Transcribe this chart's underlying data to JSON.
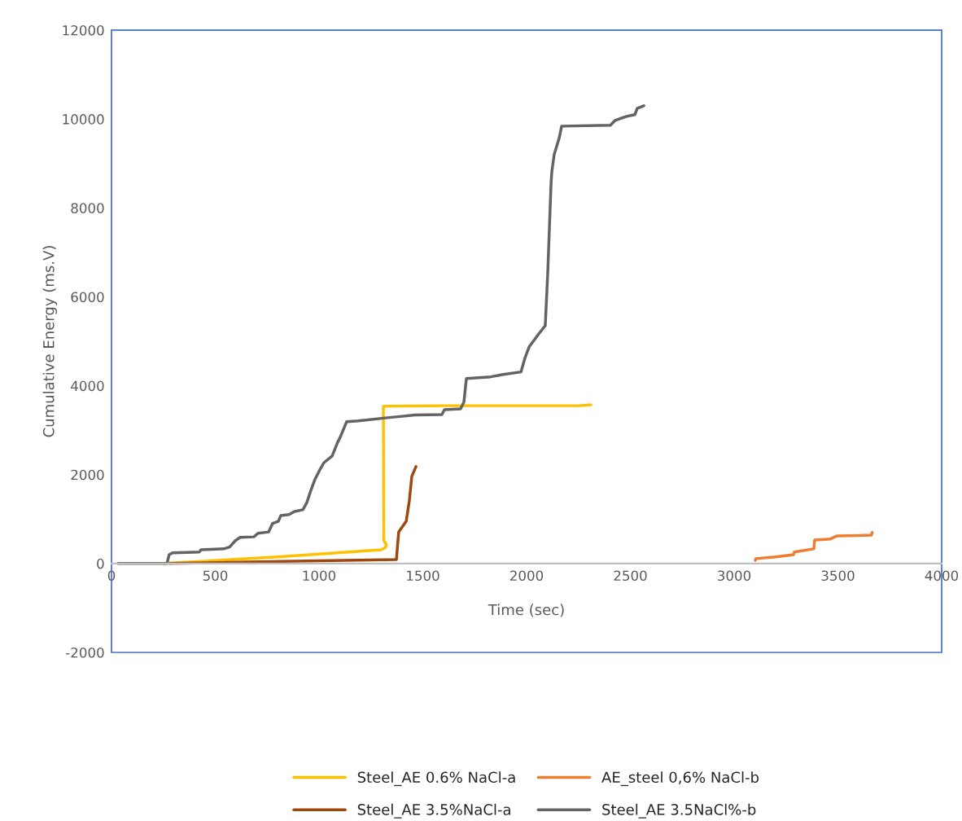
{
  "chart_data": {
    "type": "line",
    "xlabel": "Time (sec)",
    "ylabel": "Cumulative Energy (ms.V)",
    "xlim": [
      0,
      4000
    ],
    "xticks": [
      0,
      500,
      1000,
      1500,
      2000,
      2500,
      3000,
      3500,
      4000
    ],
    "ylim": [
      -2000,
      12000
    ],
    "yticks": [
      -2000,
      0,
      2000,
      4000,
      6000,
      8000,
      10000,
      12000
    ],
    "grid": false,
    "legend": "bottom",
    "marker": "none",
    "line_style": "solid",
    "series": [
      {
        "name": "Steel_AE 0.6% NaCl-a",
        "color": "#ffc000",
        "x": [
          250,
          800,
          1300,
          1320,
          1325,
          1312,
          1310,
          1600,
          2000,
          2250,
          2310
        ],
        "values": [
          0,
          150,
          310,
          360,
          420,
          520,
          3540,
          3550,
          3550,
          3550,
          3570
        ]
      },
      {
        "name": "AE_steel 0,6% NaCl-b",
        "color": "#ed7d31",
        "x": [
          3102,
          3104,
          3200,
          3286,
          3290,
          3384,
          3388,
          3463,
          3494,
          3600,
          3662,
          3665
        ],
        "values": [
          70,
          110,
          150,
          200,
          260,
          330,
          530,
          550,
          620,
          630,
          640,
          700
        ]
      },
      {
        "name": "Steel_AE 3.5%NaCl-a",
        "color": "#9e480e",
        "x": [
          280,
          600,
          1000,
          1373,
          1378,
          1384,
          1420,
          1435,
          1447,
          1467
        ],
        "values": [
          0,
          30,
          60,
          90,
          400,
          710,
          950,
          1410,
          1960,
          2180
        ]
      },
      {
        "name": "Steel_AE 3.5NaCl%-b",
        "color": "#636363",
        "x": [
          31,
          267,
          278,
          294,
          424,
          431,
          541,
          569,
          596,
          620,
          686,
          706,
          757,
          776,
          804,
          816,
          855,
          882,
          922,
          941,
          961,
          980,
          1004,
          1024,
          1063,
          1090,
          1102,
          1133,
          1188,
          1329,
          1463,
          1592,
          1604,
          1682,
          1698,
          1710,
          1827,
          1882,
          1973,
          1992,
          2012,
          2059,
          2090,
          2102,
          2118,
          2122,
          2133,
          2157,
          2169,
          2404,
          2427,
          2482,
          2522,
          2533,
          2565
        ],
        "values": [
          0,
          0,
          200,
          240,
          260,
          310,
          330,
          370,
          510,
          590,
          600,
          680,
          710,
          900,
          950,
          1080,
          1100,
          1170,
          1210,
          1370,
          1650,
          1890,
          2110,
          2270,
          2420,
          2730,
          2840,
          3190,
          3210,
          3280,
          3340,
          3350,
          3460,
          3480,
          3630,
          4160,
          4200,
          4250,
          4310,
          4620,
          4870,
          5170,
          5350,
          6540,
          8560,
          8830,
          9200,
          9570,
          9840,
          9860,
          9970,
          10060,
          10100,
          10240,
          10300
        ]
      }
    ]
  }
}
